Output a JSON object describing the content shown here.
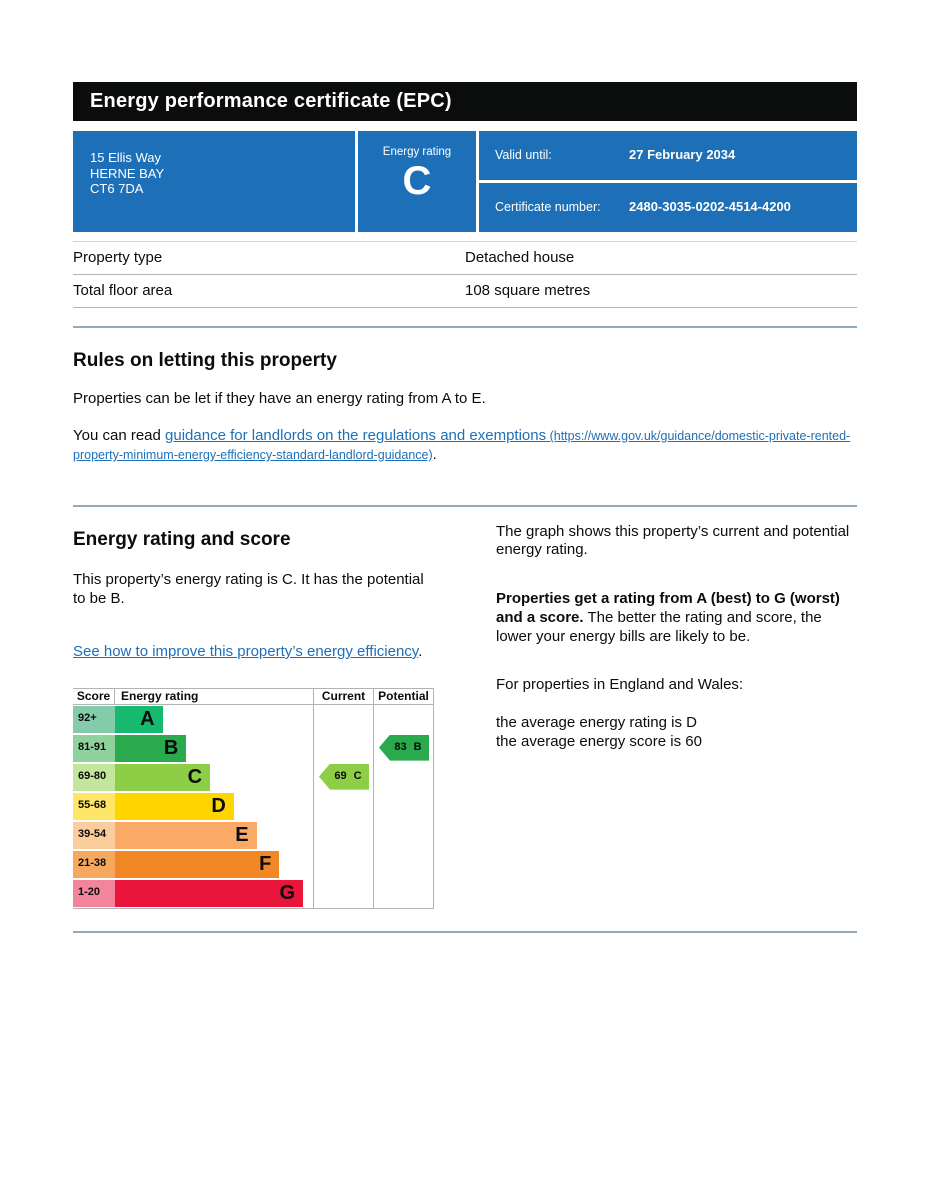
{
  "page_title": "Energy performance certificate (EPC)",
  "summary": {
    "address_line1": "15 Ellis Way",
    "address_line2": "HERNE BAY",
    "address_line3": "CT6 7DA",
    "energy_rating_label": "Energy rating",
    "energy_rating": "C",
    "valid_until_label": "Valid until:",
    "valid_until_value": "27 February 2034",
    "certificate_number_label": "Certificate number:",
    "certificate_number_value": "2480-3035-0202-4514-4200"
  },
  "property_details": {
    "rows": [
      {
        "label": "Property type",
        "value": "Detached house"
      },
      {
        "label": "Total floor area",
        "value": "108 square metres"
      }
    ]
  },
  "rules_section": {
    "heading": "Rules on letting this property",
    "paragraph1": "Properties can be let if they have an energy rating from A to E.",
    "paragraph2_prefix": "You can read ",
    "link_text": "guidance for landlords on the regulations and exemptions",
    "link_url_text": " (https://www.gov.uk/guidance/domestic-private-rented-property-minimum-energy-efficiency-standard-landlord-guidance)",
    "paragraph2_suffix": "."
  },
  "rating_section": {
    "heading": "Energy rating and score",
    "paragraph1": "This property’s energy rating is C. It has the potential to be B.",
    "improve_link_text": "See how to improve this property’s energy efficiency",
    "improve_link_suffix": "."
  },
  "right_column": {
    "paragraph1": "The graph shows this property’s current and potential energy rating.",
    "paragraph2_bold": "Properties get a rating from A (best) to G (worst) and a score.",
    "paragraph2_rest": " The better the rating and score, the lower your energy bills are likely to be.",
    "paragraph3": "For properties in England and Wales:",
    "paragraph4_line1": "the average energy rating is D",
    "paragraph4_line2": "the average energy score is 60"
  },
  "colors": {
    "govuk_blue": "#1d70b8",
    "header_black": "#0b0c0c",
    "divider_blue_grey": "#92aabb",
    "table_line_grey": "#b1b4b6"
  },
  "chart_data": {
    "type": "bar",
    "title": "EPC energy rating and score chart",
    "headers": [
      "Score",
      "Energy rating",
      "Current",
      "Potential"
    ],
    "bands": [
      {
        "rating": "A",
        "score_range": "92+",
        "color": "#17b96f",
        "tint": "#84cba9",
        "width_pct": 24
      },
      {
        "rating": "B",
        "score_range": "81-91",
        "color": "#2aa94d",
        "tint": "#90d29e",
        "width_pct": 36
      },
      {
        "rating": "C",
        "score_range": "69-80",
        "color": "#8dce46",
        "tint": "#c2e79c",
        "width_pct": 48
      },
      {
        "rating": "D",
        "score_range": "55-68",
        "color": "#ffd500",
        "tint": "#ffe666",
        "width_pct": 60
      },
      {
        "rating": "E",
        "score_range": "39-54",
        "color": "#fbaa65",
        "tint": "#fccd9c",
        "width_pct": 71.5
      },
      {
        "rating": "F",
        "score_range": "21-38",
        "color": "#f18825",
        "tint": "#f6a95e",
        "width_pct": 83
      },
      {
        "rating": "G",
        "score_range": "1-20",
        "color": "#e9153b",
        "tint": "#f2849b",
        "width_pct": 95
      }
    ],
    "current": {
      "score": "69",
      "rating": "C",
      "band_index": 2,
      "color": "#8dce46"
    },
    "potential": {
      "score": "83",
      "rating": "B",
      "band_index": 1,
      "color": "#2aa94d"
    }
  }
}
